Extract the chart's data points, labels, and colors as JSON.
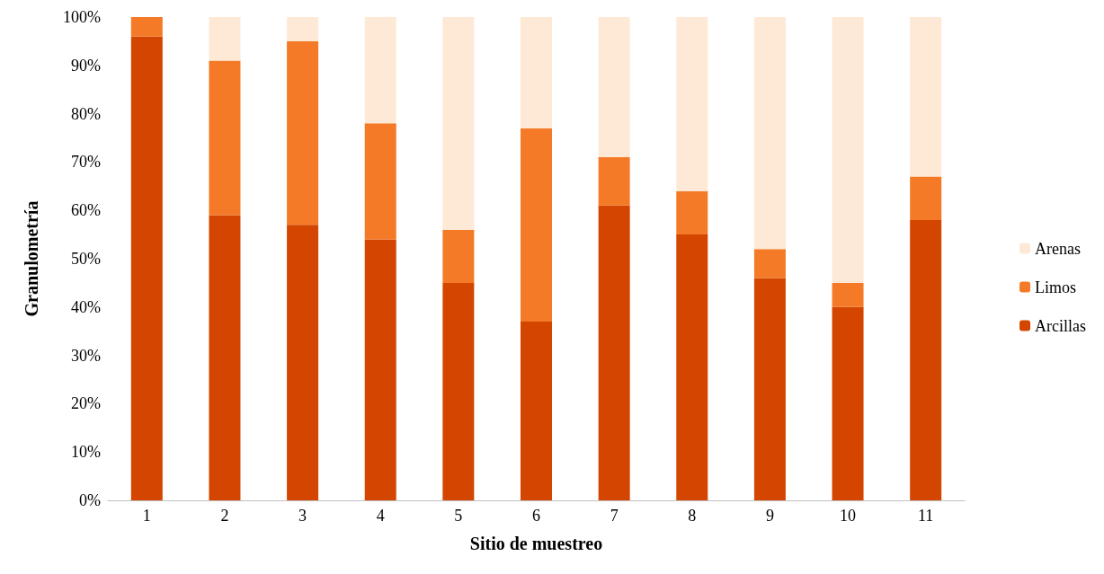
{
  "chart_data": {
    "type": "bar",
    "stacked": true,
    "xlabel": "Sitio de muestreo",
    "ylabel": "Granulometría",
    "categories": [
      "1",
      "2",
      "3",
      "4",
      "5",
      "6",
      "7",
      "8",
      "9",
      "10",
      "11"
    ],
    "series": [
      {
        "name": "Arcillas",
        "color": "#d44500",
        "values": [
          96,
          59,
          57,
          54,
          45,
          37,
          61,
          55,
          46,
          40,
          58
        ]
      },
      {
        "name": "Limos",
        "color": "#f47a27",
        "values": [
          4,
          32,
          38,
          24,
          11,
          40,
          10,
          9,
          6,
          5,
          9
        ]
      },
      {
        "name": "Arenas",
        "color": "#fde9d5",
        "values": [
          0,
          9,
          5,
          22,
          44,
          23,
          29,
          36,
          48,
          55,
          33
        ]
      }
    ],
    "ylim": [
      0,
      100
    ],
    "yticks": [
      {
        "value": 0,
        "label": "0%"
      },
      {
        "value": 10,
        "label": "10%"
      },
      {
        "value": 20,
        "label": "20%"
      },
      {
        "value": 30,
        "label": "30%"
      },
      {
        "value": 40,
        "label": "40%"
      },
      {
        "value": 50,
        "label": "50%"
      },
      {
        "value": 60,
        "label": "60%"
      },
      {
        "value": 70,
        "label": "70%"
      },
      {
        "value": 80,
        "label": "80%"
      },
      {
        "value": 90,
        "label": "90%"
      },
      {
        "value": 100,
        "label": "100%"
      }
    ],
    "grid": false,
    "legend": "right"
  }
}
